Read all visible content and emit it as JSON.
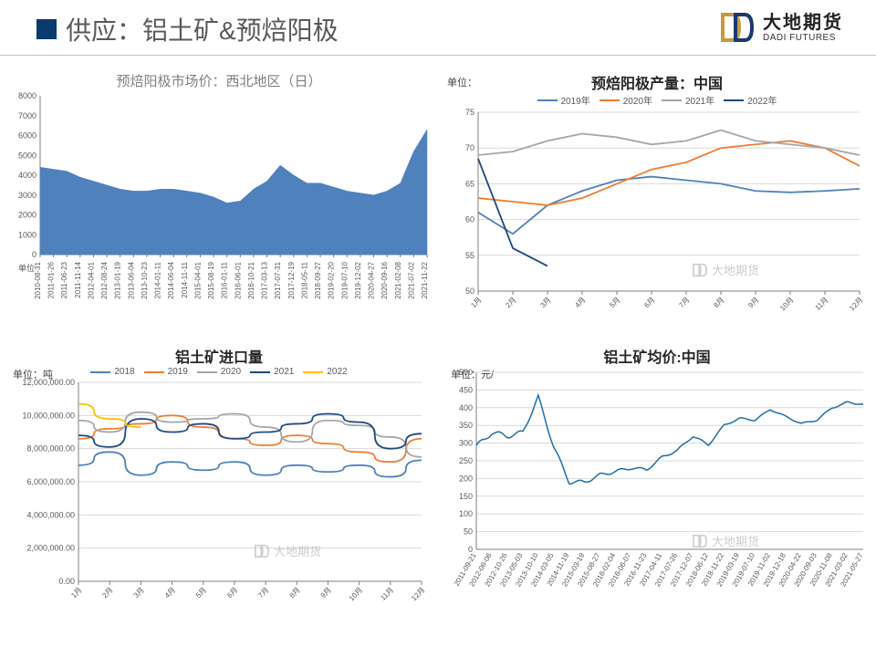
{
  "header": {
    "title": "供应：铝土矿&预焙阳极",
    "logo_cn": "大地期货",
    "logo_en": "DADI FUTURES",
    "logo_colors": {
      "bar1": "#c79a3a",
      "bar2": "#1a3a6e"
    }
  },
  "watermark_text": "大地期货",
  "panels": {
    "tl": {
      "title": "预焙阳极市场价：西北地区（日）",
      "unit": "单位",
      "type": "area",
      "ylim": [
        0,
        8000
      ],
      "ytick_step": 1000,
      "area_color": "#4f81bd",
      "background": "#ffffff",
      "x_dates": [
        "2010-08-31",
        "2011-01-26",
        "2011-06-23",
        "2011-11-14",
        "2012-04-01",
        "2012-08-24",
        "2013-01-19",
        "2013-06-04",
        "2013-10-23",
        "2014-01-11",
        "2014-06-04",
        "2014-11-11",
        "2015-04-01",
        "2015-08-19",
        "2016-01-11",
        "2016-06-01",
        "2016-10-21",
        "2017-03-13",
        "2017-07-31",
        "2017-12-19",
        "2018-05-11",
        "2018-09-27",
        "2019-02-20",
        "2019-07-10",
        "2019-12-02",
        "2020-04-27",
        "2020-09-16",
        "2021-02-08",
        "2021-07-02",
        "2021-11-22"
      ],
      "values": [
        4400,
        4300,
        4200,
        3900,
        3700,
        3500,
        3300,
        3200,
        3200,
        3300,
        3300,
        3200,
        3100,
        2900,
        2600,
        2700,
        3300,
        3700,
        4500,
        4000,
        3600,
        3600,
        3400,
        3200,
        3100,
        3000,
        3200,
        3600,
        5200,
        6300
      ]
    },
    "tr": {
      "title": "预焙阳极产量：中国",
      "unit": "单位：",
      "type": "line",
      "ylim": [
        50,
        75
      ],
      "ytick_step": 5,
      "x_labels": [
        "1月",
        "2月",
        "3月",
        "4月",
        "5月",
        "6月",
        "7月",
        "8月",
        "9月",
        "10月",
        "11月",
        "12月"
      ],
      "legend": [
        "2019年",
        "2020年",
        "2021年",
        "2022年"
      ],
      "colors": {
        "2019年": "#4f81bd",
        "2020年": "#ed7d31",
        "2021年": "#a6a6a6",
        "2022年": "#1f497d"
      },
      "line_width": 1.8,
      "series": {
        "2019年": [
          61,
          58,
          62,
          64,
          65.5,
          66,
          65.5,
          65,
          64,
          63.8,
          64,
          64.3
        ],
        "2020年": [
          63,
          62.5,
          62,
          63,
          65,
          67,
          68,
          70,
          70.5,
          71,
          70,
          67.5
        ],
        "2021年": [
          69,
          69.5,
          71,
          72,
          71.5,
          70.5,
          71,
          72.5,
          71,
          70.5,
          70,
          69
        ],
        "2022年": [
          68.5,
          56,
          53.5
        ]
      },
      "axis_color": "#595959",
      "background": "#ffffff"
    },
    "bl": {
      "title": "铝土矿进口量",
      "unit": "单位：吨",
      "type": "line",
      "ylim": [
        0,
        12000000
      ],
      "ytick_step": 2000000,
      "y_format": "float2",
      "x_labels": [
        "1月",
        "2月",
        "3月",
        "4月",
        "5月",
        "6月",
        "7月",
        "8月",
        "9月",
        "10月",
        "11月",
        "12月"
      ],
      "legend": [
        "2018",
        "2019",
        "2020",
        "2021",
        "2022"
      ],
      "colors": {
        "2018": "#4f81bd",
        "2019": "#ed7d31",
        "2020": "#a6a6a6",
        "2021": "#1f497d",
        "2022": "#ffc000"
      },
      "line_width": 1.8,
      "series": {
        "2018": [
          7000000,
          7800000,
          6400000,
          7200000,
          6700000,
          7200000,
          6400000,
          7000000,
          6600000,
          7000000,
          6300000,
          7300000
        ],
        "2019": [
          8600000,
          9200000,
          9500000,
          10000000,
          9300000,
          8600000,
          8200000,
          8800000,
          8300000,
          7800000,
          7200000,
          8600000
        ],
        "2020": [
          9700000,
          9000000,
          10200000,
          9600000,
          9800000,
          10100000,
          9300000,
          8400000,
          9700000,
          9400000,
          8700000,
          7500000
        ],
        "2021": [
          8800000,
          8100000,
          9800000,
          9000000,
          9500000,
          8600000,
          9000000,
          9500000,
          10100000,
          9600000,
          8000000,
          8900000
        ],
        "2022": [
          10700000,
          9800000,
          9300000
        ]
      },
      "axis_color": "#595959",
      "background": "#ffffff"
    },
    "br": {
      "title": "铝土矿均价:中国",
      "unit": "单位：元/",
      "type": "line",
      "ylim": [
        0,
        500
      ],
      "ytick_step": 50,
      "line_color": "#1f6fa8",
      "line_width": 1.5,
      "background": "#ffffff",
      "x_dates": [
        "2011-09-21",
        "2012-06-06",
        "2012-10-26",
        "2013-05-03",
        "2013-10-10",
        "2014-03-05",
        "2014-11-19",
        "2015-03-19",
        "2015-08-27",
        "2016-02-04",
        "2016-06-07",
        "2016-11-23",
        "2017-04-11",
        "2017-07-26",
        "2017-12-07",
        "2018-06-12",
        "2018-11-22",
        "2019-03-19",
        "2019-07-10",
        "2019-11-02",
        "2019-12-18",
        "2020-04-22",
        "2020-09-03",
        "2020-11-08",
        "2021-03-02",
        "2021-05-27"
      ],
      "values": [
        290,
        330,
        320,
        330,
        430,
        290,
        190,
        190,
        210,
        220,
        230,
        225,
        260,
        280,
        320,
        295,
        350,
        370,
        365,
        395,
        375,
        355,
        365,
        400,
        415,
        410
      ]
    }
  }
}
